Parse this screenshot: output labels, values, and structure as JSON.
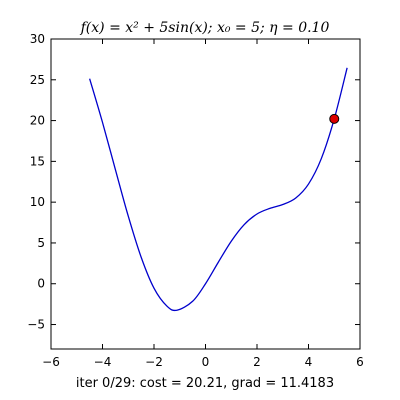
{
  "chart_data": {
    "type": "line",
    "title": "f(x) = x² + 5sin(x); x₀ = 5; η = 0.10",
    "xlabel": "iter 0/29: cost = 20.21, grad = 11.4183",
    "ylabel": "",
    "xlim": [
      -6,
      6
    ],
    "ylim": [
      -8,
      30
    ],
    "x_ticks": [
      -6,
      -4,
      -2,
      0,
      2,
      4,
      6
    ],
    "y_ticks": [
      -5,
      0,
      5,
      10,
      15,
      20,
      25,
      30
    ],
    "x_tick_labels": [
      "−6",
      "−4",
      "−2",
      "0",
      "2",
      "4",
      "6"
    ],
    "y_tick_labels": [
      "−5",
      "0",
      "5",
      "10",
      "15",
      "20",
      "25",
      "30"
    ],
    "grid": false,
    "function": "x^2 + 5*sin(x)",
    "series": [
      {
        "x": [
          -4.5,
          -4.0,
          -3.5,
          -3.0,
          -2.5,
          -2.0,
          -1.5,
          -1.11,
          -0.5,
          0.0,
          0.5,
          1.0,
          1.5,
          2.0,
          2.5,
          3.0,
          3.5,
          4.0,
          4.5,
          5.0,
          5.5
        ],
        "y": [
          25.14,
          19.78,
          14.0,
          8.29,
          3.26,
          -0.55,
          -2.74,
          -3.25,
          -2.15,
          0.0,
          2.65,
          5.21,
          7.24,
          8.55,
          9.24,
          9.71,
          10.5,
          12.22,
          15.36,
          20.21,
          26.47
        ],
        "color": "#0000cc"
      }
    ],
    "current_point": {
      "x": 5.0,
      "y": 20.21,
      "color": "#dd0000"
    },
    "colors": {
      "line": "#0000cc",
      "marker": "#dd0000",
      "marker_edge": "#000000",
      "axes": "#000000"
    }
  }
}
